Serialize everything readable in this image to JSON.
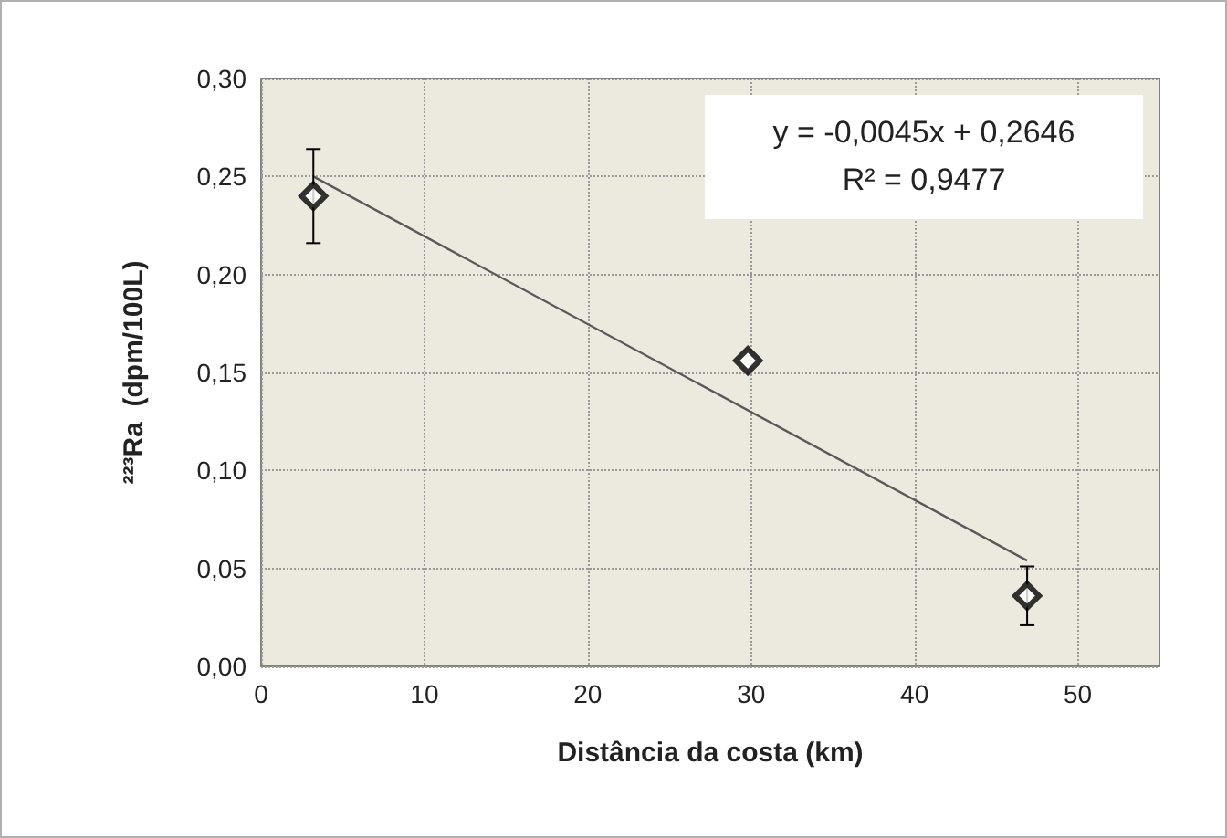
{
  "chart_data": {
    "type": "scatter",
    "xlabel": "Distância da costa (km)",
    "ylabel": "²²³Ra  (dpm/100L)",
    "annotations": [
      "y = -0,0045x + 0,2646",
      "R² = 0,9477"
    ],
    "series": [
      {
        "color": "#000000",
        "marker": "diamond",
        "x": [
          3.2,
          29.8,
          46.9
        ],
        "values": [
          0.24,
          0.156,
          0.036
        ],
        "errors": [
          0.024,
          null,
          0.015
        ]
      },
      {
        "type": "line",
        "color": "#595959",
        "marker": "none",
        "line_style": "solid",
        "x": [
          3.2,
          46.9
        ],
        "values": [
          0.25,
          0.054
        ]
      }
    ],
    "xlim": [
      0,
      55
    ],
    "xticks": [
      0,
      10,
      20,
      30,
      40,
      50
    ],
    "ylim": [
      0,
      0.3
    ],
    "yticks": [
      {
        "value": 0,
        "label": "0,00"
      },
      {
        "value": 0.05,
        "label": "0,05"
      },
      {
        "value": 0.1,
        "label": "0,10"
      },
      {
        "value": 0.15,
        "label": "0,15"
      },
      {
        "value": 0.2,
        "label": "0,20"
      },
      {
        "value": 0.25,
        "label": "0,25"
      },
      {
        "value": 0.3,
        "label": "0,30"
      }
    ],
    "grid": true
  }
}
